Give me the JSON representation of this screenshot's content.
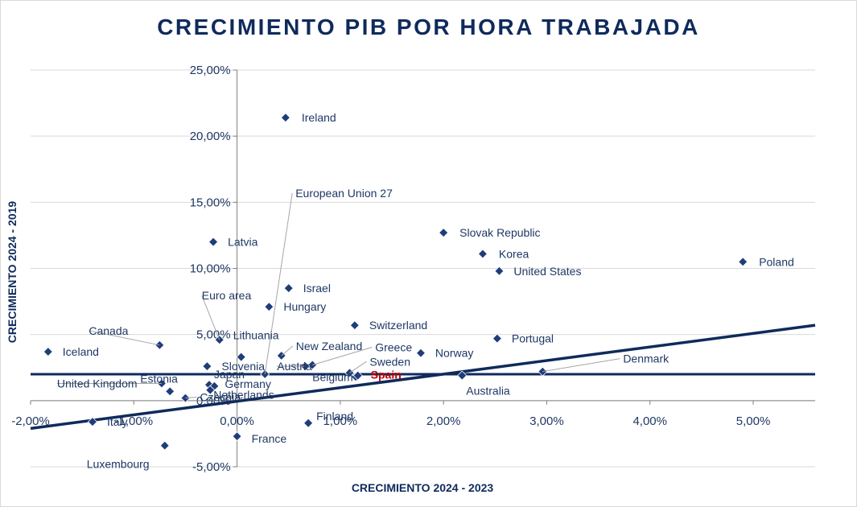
{
  "chart_data": {
    "type": "scatter",
    "title": "CRECIMIENTO PIB POR HORA TRABAJADA",
    "xlabel": "CRECIMIENTO 2024 - 2023",
    "ylabel": "CRECIMIENTO 2024 - 2019",
    "xlim": [
      -0.02,
      0.056
    ],
    "ylim": [
      -0.05,
      0.25
    ],
    "xticks": [
      -0.02,
      -0.01,
      0,
      0.01,
      0.02,
      0.03,
      0.04,
      0.05
    ],
    "xtick_labels": [
      "-2,00%",
      "-1,00%",
      "0,00%",
      "1,00%",
      "2,00%",
      "3,00%",
      "4,00%",
      "5,00%"
    ],
    "yticks": [
      -0.05,
      0,
      0.05,
      0.1,
      0.15,
      0.2,
      0.25
    ],
    "ytick_labels": [
      "-5,00%",
      "0,00%",
      "5,00%",
      "10,00%",
      "15,00%",
      "20,00%",
      "25,00%"
    ],
    "grid": "horizontal",
    "marker_color": "#0f2a5c",
    "highlight_color": "#c00000",
    "reference_line": {
      "y": 0.02
    },
    "trend_line": {
      "x": [
        -0.02,
        0.056
      ],
      "y": [
        -0.021,
        0.057
      ]
    },
    "points": [
      {
        "name": "Ireland",
        "x": 0.0047,
        "y": 0.214
      },
      {
        "name": "Latvia",
        "x": -0.0023,
        "y": 0.12
      },
      {
        "name": "European Union 27",
        "x": 0.0027,
        "y": 0.02
      },
      {
        "name": "Slovak Republic",
        "x": 0.02,
        "y": 0.127
      },
      {
        "name": "Korea",
        "x": 0.0238,
        "y": 0.111
      },
      {
        "name": "Poland",
        "x": 0.049,
        "y": 0.105
      },
      {
        "name": "United States",
        "x": 0.0254,
        "y": 0.098
      },
      {
        "name": "Israel",
        "x": 0.005,
        "y": 0.085
      },
      {
        "name": "Hungary",
        "x": 0.0031,
        "y": 0.071
      },
      {
        "name": "Euro area",
        "x": -0.0017,
        "y": 0.046
      },
      {
        "name": "Switzerland",
        "x": 0.0114,
        "y": 0.057
      },
      {
        "name": "Portugal",
        "x": 0.0252,
        "y": 0.047
      },
      {
        "name": "Canada",
        "x": -0.0075,
        "y": 0.042
      },
      {
        "name": "Lithuania",
        "x": 0.0004,
        "y": 0.033
      },
      {
        "name": "Slovenia",
        "x": -0.0029,
        "y": 0.026
      },
      {
        "name": "Iceland",
        "x": -0.0183,
        "y": 0.037
      },
      {
        "name": "New Zealand",
        "x": 0.0043,
        "y": 0.034
      },
      {
        "name": "Greece",
        "x": 0.0073,
        "y": 0.027
      },
      {
        "name": "Norway",
        "x": 0.0178,
        "y": 0.036
      },
      {
        "name": "Denmark",
        "x": 0.0296,
        "y": 0.022
      },
      {
        "name": "Austria",
        "x": 0.0066,
        "y": 0.026
      },
      {
        "name": "Sweden",
        "x": 0.0109,
        "y": 0.021
      },
      {
        "name": "Belgium",
        "x": 0.0115,
        "y": 0.018
      },
      {
        "name": "Spain",
        "x": 0.0117,
        "y": 0.019
      },
      {
        "name": "Australia",
        "x": 0.0218,
        "y": 0.019
      },
      {
        "name": "Estonia",
        "x": -0.0065,
        "y": 0.007
      },
      {
        "name": "United Kingdom",
        "x": -0.0073,
        "y": 0.013
      },
      {
        "name": "Japan",
        "x": -0.0027,
        "y": 0.012
      },
      {
        "name": "Germany",
        "x": -0.0022,
        "y": 0.011
      },
      {
        "name": "Netherlands",
        "x": -0.0026,
        "y": 0.008
      },
      {
        "name": "Czechia",
        "x": -0.005,
        "y": 0.002
      },
      {
        "name": "Italy",
        "x": -0.014,
        "y": -0.016
      },
      {
        "name": "Finland",
        "x": 0.0069,
        "y": -0.017
      },
      {
        "name": "France",
        "x": 0.0,
        "y": -0.027
      },
      {
        "name": "Luxembourg",
        "x": -0.007,
        "y": -0.034
      }
    ]
  }
}
